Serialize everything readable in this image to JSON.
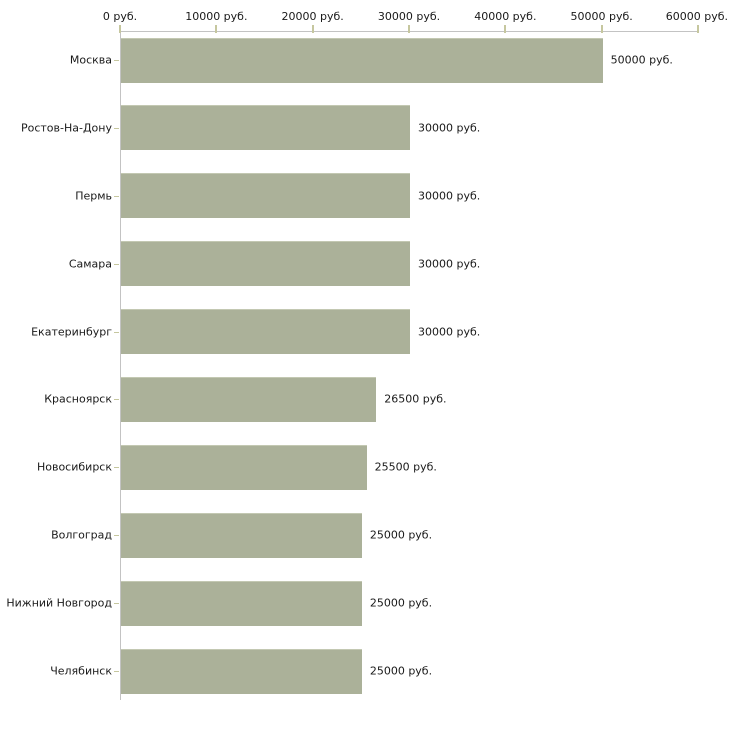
{
  "chart_data": {
    "type": "bar",
    "orientation": "horizontal",
    "categories": [
      "Москва",
      "Ростов-На-Дону",
      "Пермь",
      "Самара",
      "Екатеринбург",
      "Красноярск",
      "Новосибирск",
      "Волгоград",
      "Нижний Новгород",
      "Челябинск"
    ],
    "values": [
      50000,
      30000,
      30000,
      30000,
      30000,
      26500,
      25500,
      25000,
      25000,
      25000
    ],
    "value_labels": [
      "50000 руб.",
      "30000 руб.",
      "30000 руб.",
      "30000 руб.",
      "30000 руб.",
      "26500 руб.",
      "25500 руб.",
      "25000 руб.",
      "25000 руб.",
      "25000 руб."
    ],
    "x_axis": {
      "position": "top",
      "min": 0,
      "max": 60000,
      "tick_step": 10000,
      "tick_labels": [
        "0 руб.",
        "10000 руб.",
        "20000 руб.",
        "30000 руб.",
        "40000 руб.",
        "50000 руб.",
        "60000 руб."
      ]
    },
    "grid": false,
    "legend_position": "none",
    "colors": {
      "bar": "#abb199",
      "axis_line": "#c3c3c3",
      "tick": "#c6c79f",
      "text": "#1a1a1a",
      "background": "#ffffff"
    }
  }
}
